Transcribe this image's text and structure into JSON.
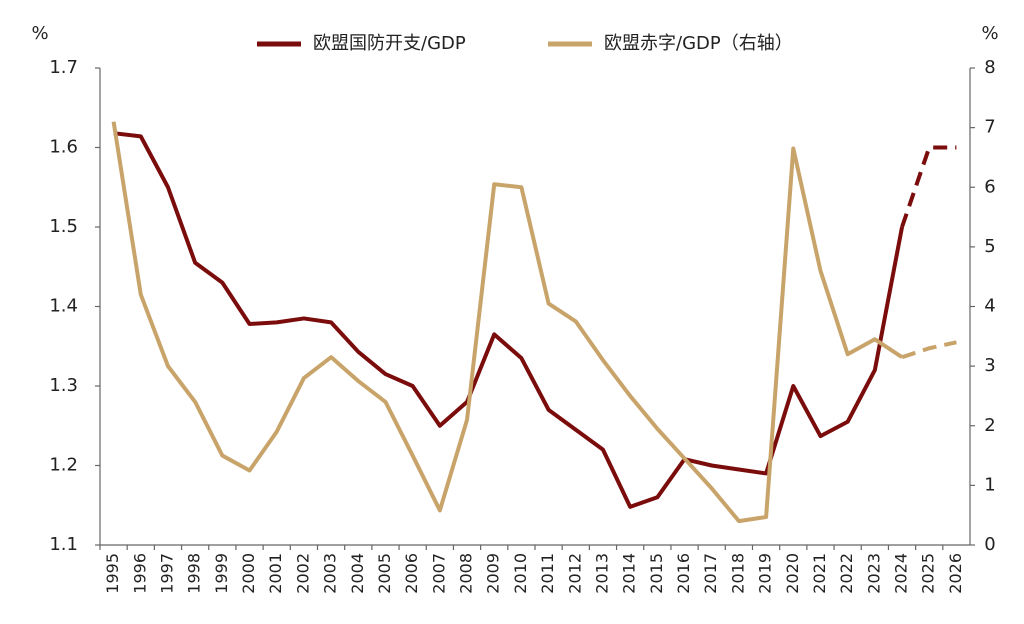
{
  "chart_data": {
    "type": "line",
    "y_unit": "%",
    "y2_unit": "%",
    "categories": [
      "1995",
      "1996",
      "1997",
      "1998",
      "1999",
      "2000",
      "2001",
      "2002",
      "2003",
      "2004",
      "2005",
      "2006",
      "2007",
      "2008",
      "2009",
      "2010",
      "2011",
      "2012",
      "2013",
      "2014",
      "2015",
      "2016",
      "2017",
      "2018",
      "2019",
      "2020",
      "2021",
      "2022",
      "2023",
      "2024",
      "2025",
      "2026"
    ],
    "series": [
      {
        "name": "欧盟国防开支/GDP",
        "color": "#7b0c0c",
        "axis": "y",
        "dashed_from": "2024",
        "values": [
          1.618,
          1.614,
          1.55,
          1.455,
          1.43,
          1.378,
          1.38,
          1.385,
          1.38,
          1.343,
          1.315,
          1.3,
          1.25,
          1.28,
          1.365,
          1.335,
          1.27,
          1.245,
          1.22,
          1.148,
          1.16,
          1.208,
          1.2,
          1.195,
          1.19,
          1.3,
          1.237,
          1.255,
          1.32,
          1.5,
          1.6,
          1.6
        ]
      },
      {
        "name": "欧盟赤字/GDP（右轴）",
        "color": "#c8a46a",
        "axis": "y2",
        "dashed_from": "2024",
        "values": [
          7.1,
          4.2,
          3.0,
          2.4,
          1.5,
          1.25,
          1.9,
          2.8,
          3.15,
          2.75,
          2.4,
          1.5,
          0.58,
          2.1,
          6.05,
          6.0,
          4.05,
          3.75,
          3.1,
          2.5,
          1.95,
          1.45,
          0.95,
          0.4,
          0.47,
          6.65,
          4.6,
          3.2,
          3.45,
          3.15,
          3.3,
          3.4
        ]
      }
    ],
    "ylim": [
      1.1,
      1.7
    ],
    "yticks": [
      1.1,
      1.2,
      1.3,
      1.4,
      1.5,
      1.6,
      1.7
    ],
    "y2lim": [
      0,
      8
    ],
    "y2ticks": [
      0,
      1,
      2,
      3,
      4,
      5,
      6,
      7,
      8
    ],
    "grid": false
  }
}
